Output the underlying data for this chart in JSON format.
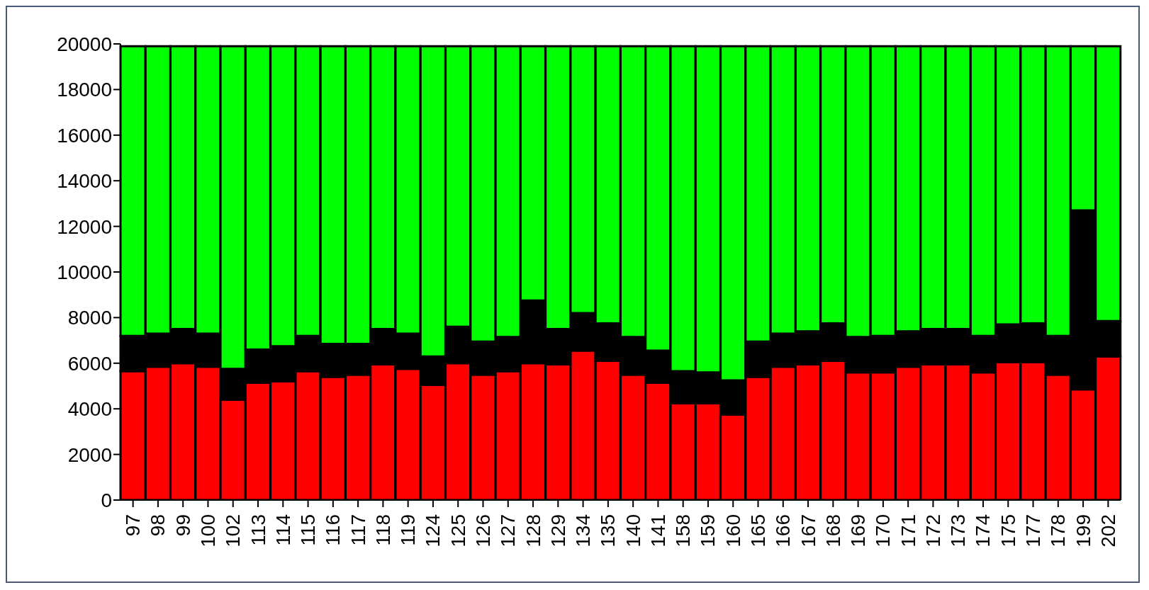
{
  "chart_data": {
    "type": "bar",
    "stacked": true,
    "grid": false,
    "legend": false,
    "categories": [
      "97",
      "98",
      "99",
      "100",
      "102",
      "113",
      "114",
      "115",
      "116",
      "117",
      "118",
      "119",
      "124",
      "125",
      "126",
      "127",
      "128",
      "129",
      "134",
      "135",
      "140",
      "141",
      "158",
      "159",
      "160",
      "165",
      "166",
      "167",
      "168",
      "169",
      "170",
      "171",
      "172",
      "173",
      "174",
      "175",
      "177",
      "178",
      "199",
      "202"
    ],
    "ylim": [
      0,
      20000
    ],
    "yticks": [
      0,
      2000,
      4000,
      6000,
      8000,
      10000,
      12000,
      14000,
      16000,
      18000,
      20000
    ],
    "series": [
      {
        "color": "#ff0000",
        "values": [
          5650,
          5850,
          6000,
          5850,
          4400,
          5150,
          5200,
          5650,
          5400,
          5500,
          5950,
          5750,
          5050,
          6000,
          5500,
          5650,
          6000,
          5950,
          6550,
          6100,
          5500,
          5150,
          4250,
          4250,
          3750,
          5400,
          5850,
          5950,
          6100,
          5600,
          5600,
          5850,
          5950,
          5950,
          5600,
          6050,
          6050,
          5500,
          4850,
          6300
        ]
      },
      {
        "color": "#000000",
        "values": [
          1550,
          1450,
          1500,
          1450,
          1350,
          1450,
          1550,
          1550,
          1450,
          1350,
          1550,
          1550,
          1250,
          1600,
          1450,
          1500,
          2750,
          1550,
          1650,
          1650,
          1650,
          1400,
          1400,
          1350,
          1500,
          1550,
          1450,
          1450,
          1650,
          1550,
          1600,
          1550,
          1550,
          1550,
          1600,
          1650,
          1700,
          1700,
          7850,
          1550
        ]
      },
      {
        "color": "#00ff00",
        "values": [
          12700,
          12600,
          12400,
          12600,
          14150,
          13300,
          13150,
          12700,
          13050,
          13050,
          12400,
          12600,
          13600,
          12300,
          12950,
          12750,
          11150,
          12400,
          11700,
          12150,
          12750,
          13350,
          14250,
          14300,
          14650,
          12950,
          12600,
          12500,
          12150,
          12750,
          12700,
          12500,
          12400,
          12400,
          12700,
          12200,
          12150,
          12700,
          7200,
          12050
        ]
      }
    ]
  }
}
